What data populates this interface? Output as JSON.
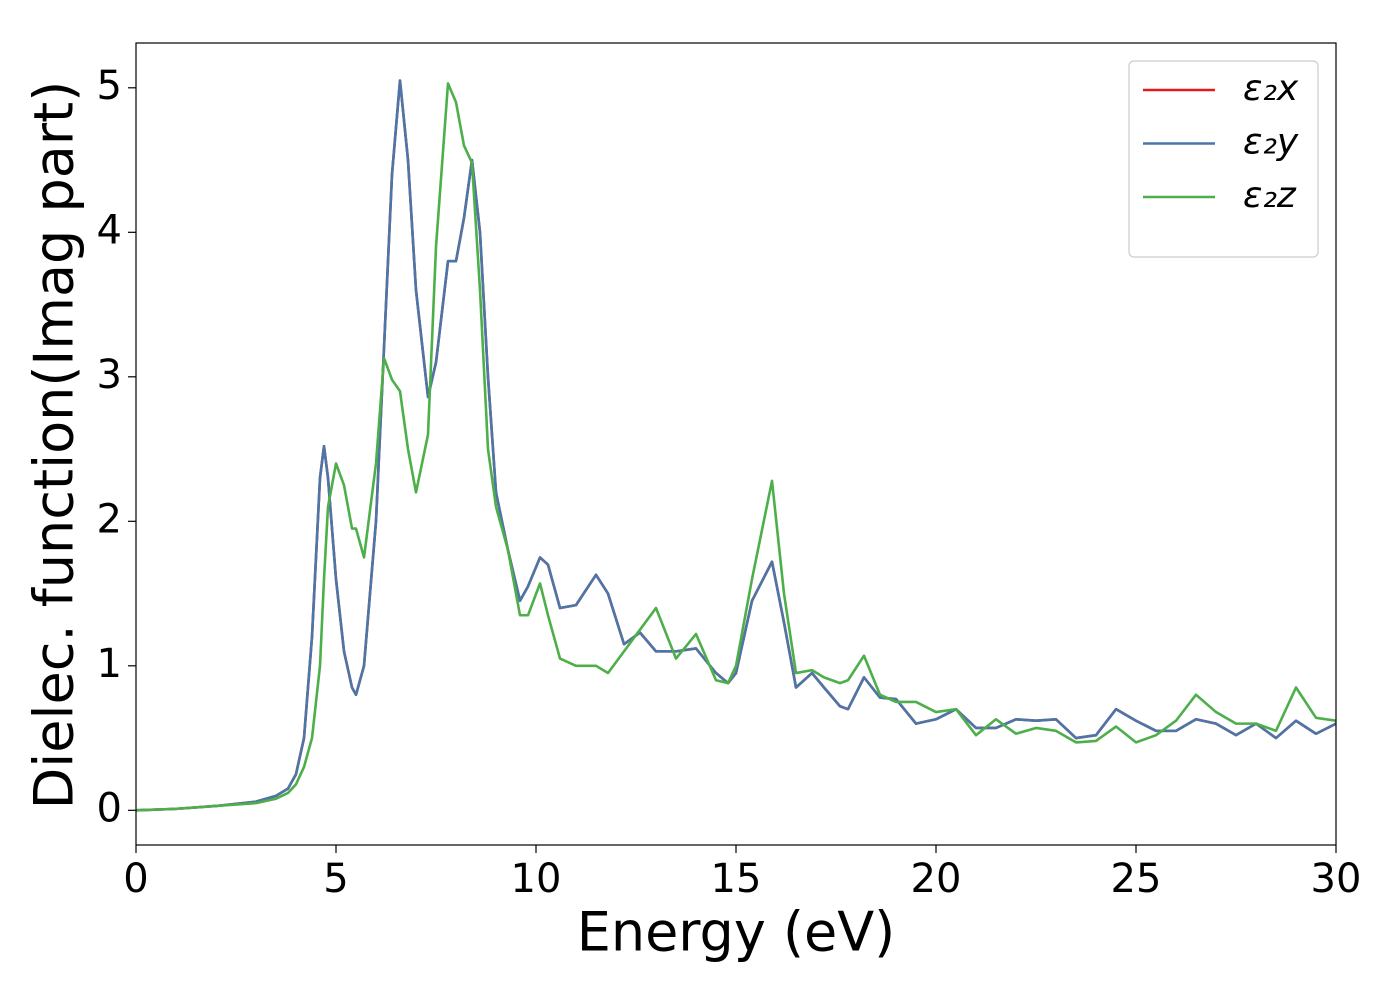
{
  "chart_data": {
    "type": "line",
    "xlabel": "Energy (eV)",
    "ylabel": "Dielec. function(Imag part)",
    "x": [
      0,
      1,
      2,
      3,
      3.5,
      3.8,
      4.0,
      4.2,
      4.4,
      4.6,
      4.7,
      4.8,
      5.0,
      5.2,
      5.4,
      5.5,
      5.7,
      6.0,
      6.2,
      6.4,
      6.6,
      6.8,
      7.0,
      7.3,
      7.5,
      7.8,
      8.0,
      8.2,
      8.4,
      8.6,
      8.8,
      9.0,
      9.3,
      9.6,
      9.8,
      10.1,
      10.3,
      10.6,
      11.0,
      11.5,
      11.8,
      12.2,
      12.6,
      13.0,
      13.5,
      14.0,
      14.5,
      14.8,
      15.0,
      15.4,
      15.9,
      16.2,
      16.5,
      16.9,
      17.2,
      17.6,
      17.8,
      18.2,
      18.6,
      19,
      19.5,
      20,
      20.5,
      21,
      21.5,
      22,
      22.5,
      23,
      23.5,
      24,
      24.5,
      25,
      25.5,
      26,
      26.5,
      27,
      27.5,
      28,
      28.5,
      29,
      29.5,
      30
    ],
    "series": [
      {
        "name": "ε₂x",
        "color": "#e41a1c",
        "values": [
          0,
          0.01,
          0.03,
          0.06,
          0.1,
          0.15,
          0.25,
          0.5,
          1.2,
          2.3,
          2.52,
          2.3,
          1.6,
          1.1,
          0.85,
          0.8,
          1.0,
          2.0,
          3.2,
          4.4,
          5.05,
          4.5,
          3.6,
          2.86,
          3.1,
          3.8,
          3.8,
          4.1,
          4.5,
          4.0,
          3.0,
          2.2,
          1.8,
          1.45,
          1.55,
          1.75,
          1.7,
          1.4,
          1.42,
          1.63,
          1.5,
          1.15,
          1.23,
          1.1,
          1.1,
          1.12,
          0.95,
          0.88,
          0.95,
          1.45,
          1.72,
          1.3,
          0.85,
          0.95,
          0.85,
          0.72,
          0.7,
          0.92,
          0.78,
          0.77,
          0.6,
          0.63,
          0.7,
          0.57,
          0.57,
          0.63,
          0.62,
          0.63,
          0.5,
          0.52,
          0.7,
          0.62,
          0.55,
          0.55,
          0.63,
          0.6,
          0.52,
          0.6,
          0.5,
          0.62,
          0.53,
          0.6
        ]
      },
      {
        "name": "ε₂y",
        "color": "#4a76a8",
        "values": [
          0,
          0.01,
          0.03,
          0.06,
          0.1,
          0.15,
          0.25,
          0.5,
          1.2,
          2.3,
          2.52,
          2.3,
          1.6,
          1.1,
          0.85,
          0.8,
          1.0,
          2.0,
          3.2,
          4.4,
          5.05,
          4.5,
          3.6,
          2.86,
          3.1,
          3.8,
          3.8,
          4.1,
          4.5,
          4.0,
          3.0,
          2.2,
          1.8,
          1.45,
          1.55,
          1.75,
          1.7,
          1.4,
          1.42,
          1.63,
          1.5,
          1.15,
          1.23,
          1.1,
          1.1,
          1.12,
          0.95,
          0.88,
          0.95,
          1.45,
          1.72,
          1.3,
          0.85,
          0.95,
          0.85,
          0.72,
          0.7,
          0.92,
          0.78,
          0.77,
          0.6,
          0.63,
          0.7,
          0.57,
          0.57,
          0.63,
          0.62,
          0.63,
          0.5,
          0.52,
          0.7,
          0.62,
          0.55,
          0.55,
          0.63,
          0.6,
          0.52,
          0.6,
          0.5,
          0.62,
          0.53,
          0.6
        ]
      },
      {
        "name": "ε₂z",
        "color": "#4daf4a",
        "values": [
          0,
          0.01,
          0.03,
          0.05,
          0.08,
          0.12,
          0.18,
          0.3,
          0.5,
          1.0,
          1.6,
          2.1,
          2.4,
          2.25,
          1.95,
          1.95,
          1.75,
          2.4,
          3.13,
          2.98,
          2.9,
          2.5,
          2.2,
          2.6,
          3.9,
          5.03,
          4.9,
          4.6,
          4.48,
          3.6,
          2.5,
          2.1,
          1.8,
          1.35,
          1.35,
          1.57,
          1.35,
          1.05,
          1.0,
          1.0,
          0.95,
          1.1,
          1.25,
          1.4,
          1.05,
          1.22,
          0.9,
          0.88,
          1.0,
          1.6,
          2.28,
          1.5,
          0.95,
          0.97,
          0.92,
          0.88,
          0.9,
          1.07,
          0.8,
          0.75,
          0.75,
          0.68,
          0.7,
          0.52,
          0.63,
          0.53,
          0.57,
          0.55,
          0.47,
          0.48,
          0.58,
          0.47,
          0.52,
          0.62,
          0.8,
          0.68,
          0.6,
          0.6,
          0.55,
          0.85,
          0.64,
          0.62
        ]
      }
    ],
    "xlim": [
      0,
      30
    ],
    "ylim": [
      -0.24,
      5.31
    ],
    "xticks": [
      0,
      5,
      10,
      15,
      20,
      25,
      30
    ],
    "yticks": [
      0,
      1,
      2,
      3,
      4,
      5
    ],
    "legend": "upper right"
  }
}
